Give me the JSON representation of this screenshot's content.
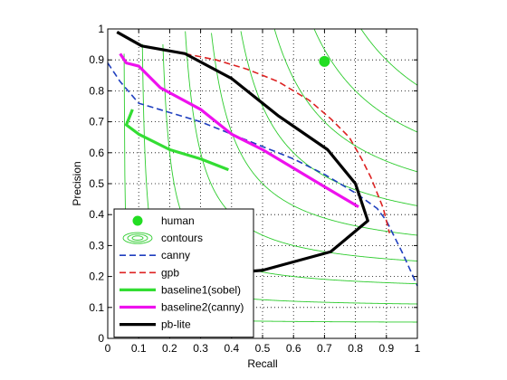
{
  "chart_data": {
    "type": "line",
    "title": "",
    "xlabel": "Recall",
    "ylabel": "Precision",
    "xlim": [
      0,
      1
    ],
    "ylim": [
      0,
      1
    ],
    "xticks": [
      "0",
      "0.1",
      "0.2",
      "0.3",
      "0.4",
      "0.5",
      "0.6",
      "0.7",
      "0.8",
      "0.9",
      "1"
    ],
    "yticks": [
      "0",
      "0.1",
      "0.2",
      "0.3",
      "0.4",
      "0.5",
      "0.6",
      "0.7",
      "0.8",
      "0.9",
      "1"
    ],
    "grid": true,
    "legend_position": "bottom-left",
    "contours": {
      "name": "contours",
      "color": "#2ecc2e",
      "levels": [
        0.1,
        0.2,
        0.3,
        0.4,
        0.5,
        0.6,
        0.7,
        0.8,
        0.9
      ]
    },
    "series": [
      {
        "name": "human",
        "kind": "marker",
        "color": "#22dd22",
        "x": [
          0.7
        ],
        "y": [
          0.895
        ]
      },
      {
        "name": "canny",
        "kind": "line",
        "style": "dashed",
        "color": "#1f3fbf",
        "x": [
          0.0,
          0.04,
          0.1,
          0.2,
          0.3,
          0.4,
          0.5,
          0.6,
          0.7,
          0.8,
          0.87,
          0.9,
          0.95,
          1.0
        ],
        "y": [
          0.89,
          0.83,
          0.76,
          0.73,
          0.7,
          0.66,
          0.62,
          0.58,
          0.53,
          0.47,
          0.42,
          0.38,
          0.28,
          0.17
        ]
      },
      {
        "name": "gpb",
        "kind": "line",
        "style": "dashed",
        "color": "#dd2222",
        "x": [
          0.25,
          0.35,
          0.45,
          0.55,
          0.65,
          0.72,
          0.78,
          0.82,
          0.85,
          0.87,
          0.89,
          0.9,
          0.91
        ],
        "y": [
          0.92,
          0.9,
          0.87,
          0.83,
          0.77,
          0.71,
          0.65,
          0.58,
          0.52,
          0.47,
          0.42,
          0.38,
          0.34
        ]
      },
      {
        "name": "baseline1(sobel)",
        "kind": "line",
        "style": "solid",
        "color": "#33dd33",
        "x": [
          0.08,
          0.06,
          0.1,
          0.2,
          0.3,
          0.39
        ],
        "y": [
          0.74,
          0.69,
          0.66,
          0.61,
          0.58,
          0.545
        ]
      },
      {
        "name": "baseline2(canny)",
        "kind": "line",
        "style": "solid",
        "color": "#ee11ee",
        "x": [
          0.04,
          0.06,
          0.1,
          0.17,
          0.3,
          0.4,
          0.5,
          0.6,
          0.7,
          0.81
        ],
        "y": [
          0.92,
          0.89,
          0.88,
          0.81,
          0.74,
          0.66,
          0.61,
          0.55,
          0.49,
          0.425
        ]
      },
      {
        "name": "pb-lite",
        "kind": "line",
        "style": "solid",
        "color": "#000000",
        "x": [
          0.03,
          0.11,
          0.25,
          0.4,
          0.55,
          0.71,
          0.8,
          0.84,
          0.72,
          0.5,
          0.25,
          0.21
        ],
        "y": [
          0.99,
          0.945,
          0.92,
          0.84,
          0.72,
          0.61,
          0.5,
          0.38,
          0.28,
          0.22,
          0.2,
          0.195
        ]
      }
    ]
  }
}
